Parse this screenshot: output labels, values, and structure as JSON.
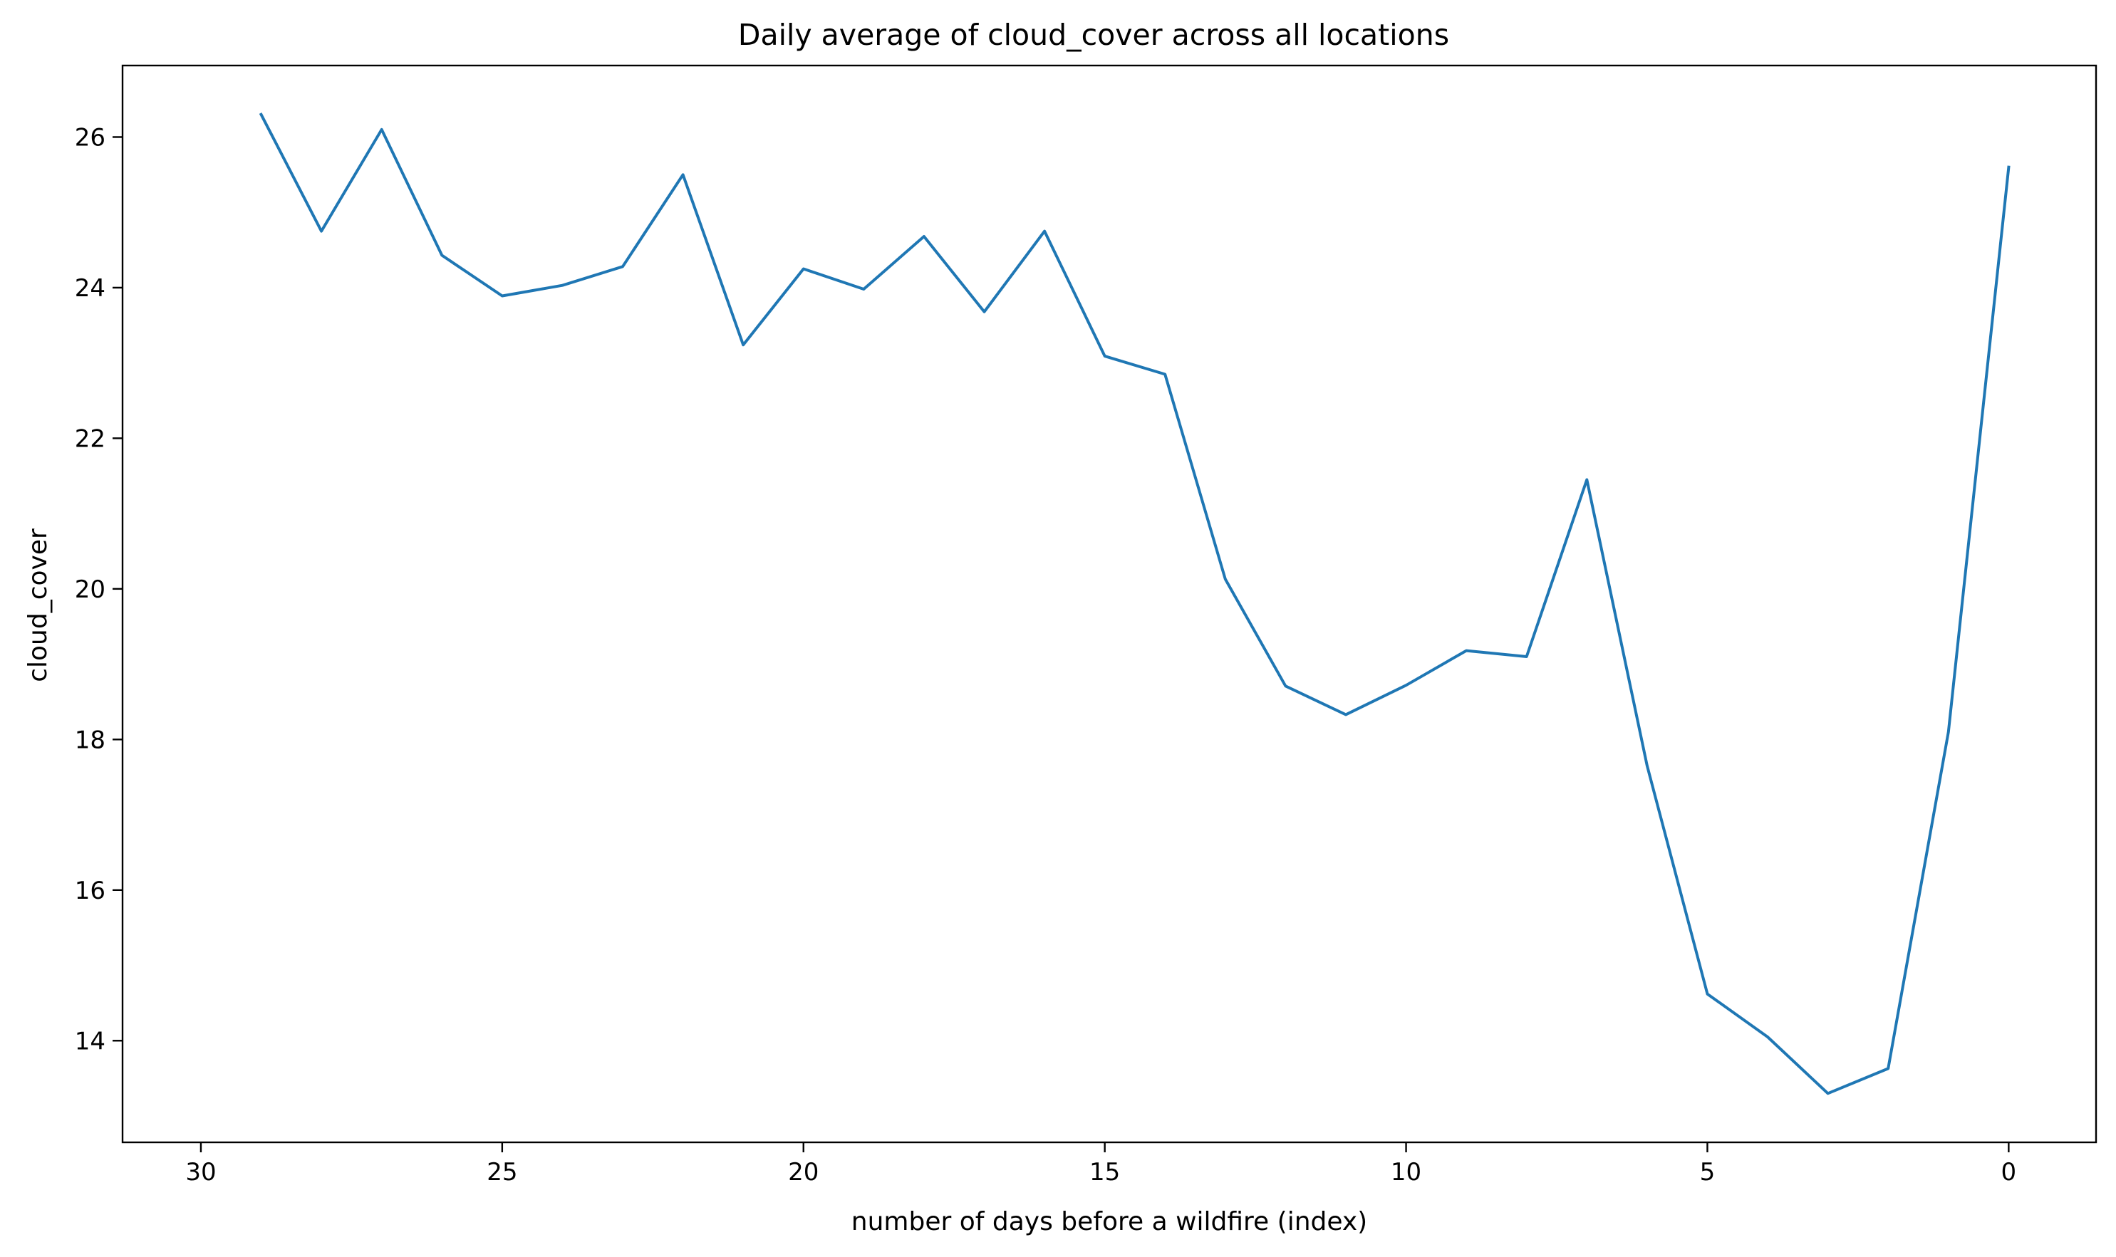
{
  "chart_data": {
    "type": "line",
    "title": "Daily average of cloud_cover across all locations",
    "xlabel": "number of days before a wildfire (index)",
    "ylabel": "cloud_cover",
    "x_inverted": true,
    "xlim": [
      31.3,
      -1.45
    ],
    "ylim": [
      12.65,
      26.95
    ],
    "xticks": [
      30,
      25,
      20,
      15,
      10,
      5,
      0
    ],
    "yticks": [
      14,
      16,
      18,
      20,
      22,
      24,
      26
    ],
    "grid": false,
    "series": [
      {
        "color": "#1f77b4",
        "x": [
          29,
          28,
          27,
          26,
          25,
          24,
          23,
          22,
          21,
          20,
          19,
          18,
          17,
          16,
          15,
          14,
          13,
          12,
          11,
          10,
          9,
          8,
          7,
          6,
          5,
          4,
          3,
          2,
          1,
          0
        ],
        "y": [
          26.3,
          24.75,
          26.1,
          24.43,
          23.89,
          24.03,
          24.28,
          25.5,
          23.24,
          24.25,
          23.98,
          24.68,
          23.68,
          24.75,
          23.09,
          22.85,
          20.13,
          18.71,
          18.33,
          18.72,
          19.18,
          19.1,
          21.45,
          17.65,
          14.62,
          14.05,
          13.3,
          13.63,
          18.1,
          25.6
        ]
      }
    ]
  }
}
